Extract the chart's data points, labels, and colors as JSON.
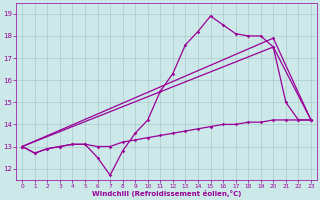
{
  "xlabel": "Windchill (Refroidissement éolien,°C)",
  "bg_color": "#cce8e8",
  "line_color": "#990099",
  "grid_color": "#aacccc",
  "ylim": [
    11.5,
    19.5
  ],
  "xlim": [
    -0.5,
    23.5
  ],
  "yticks": [
    12,
    13,
    14,
    15,
    16,
    17,
    18,
    19
  ],
  "xticks": [
    0,
    1,
    2,
    3,
    4,
    5,
    6,
    7,
    8,
    9,
    10,
    11,
    12,
    13,
    14,
    15,
    16,
    17,
    18,
    19,
    20,
    21,
    22,
    23
  ],
  "series1_x": [
    0,
    1,
    2,
    3,
    4,
    5,
    6,
    7,
    8,
    9,
    10,
    11,
    12,
    13,
    14,
    15,
    16,
    17,
    18,
    19,
    20,
    21,
    22,
    23
  ],
  "series1_y": [
    13.0,
    12.7,
    12.9,
    13.0,
    13.1,
    13.1,
    13.0,
    13.0,
    13.2,
    13.3,
    13.4,
    13.5,
    13.6,
    13.7,
    13.8,
    13.9,
    14.0,
    14.0,
    14.1,
    14.1,
    14.2,
    14.2,
    14.2,
    14.2
  ],
  "series2_x": [
    0,
    1,
    2,
    3,
    4,
    5,
    6,
    7,
    8,
    9,
    10,
    11,
    12,
    13,
    14,
    15,
    16,
    17,
    18,
    19,
    20,
    21,
    22,
    23
  ],
  "series2_y": [
    13.0,
    12.7,
    12.9,
    13.0,
    13.1,
    13.1,
    12.5,
    11.7,
    12.8,
    13.6,
    14.2,
    15.5,
    16.3,
    17.6,
    18.2,
    18.9,
    18.5,
    18.1,
    18.0,
    18.0,
    17.5,
    15.0,
    14.2,
    14.2
  ],
  "series3_x": [
    0,
    20,
    23
  ],
  "series3_y": [
    13.0,
    17.5,
    14.2
  ],
  "series4_x": [
    0,
    20,
    23
  ],
  "series4_y": [
    13.0,
    17.9,
    14.2
  ]
}
